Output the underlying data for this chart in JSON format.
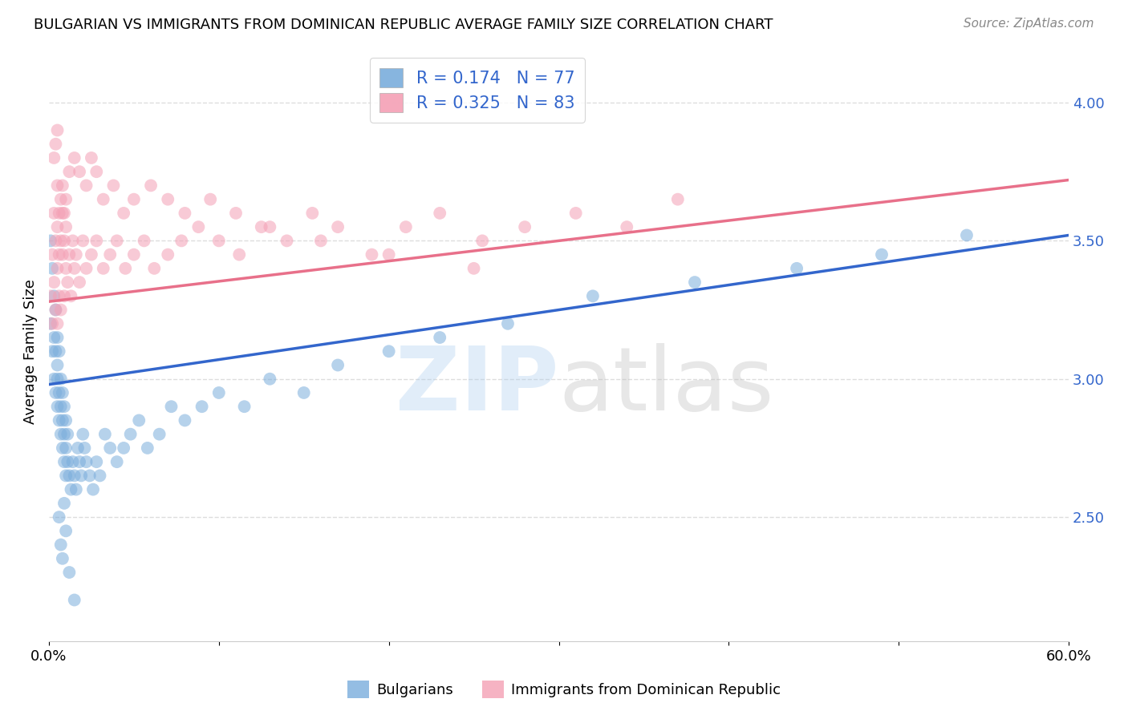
{
  "title": "BULGARIAN VS IMMIGRANTS FROM DOMINICAN REPUBLIC AVERAGE FAMILY SIZE CORRELATION CHART",
  "source": "Source: ZipAtlas.com",
  "ylabel": "Average Family Size",
  "xlim": [
    0.0,
    0.6
  ],
  "ylim": [
    2.05,
    4.15
  ],
  "yticks_right": [
    2.5,
    3.0,
    3.5,
    4.0
  ],
  "blue_R": 0.174,
  "blue_N": 77,
  "pink_R": 0.325,
  "pink_N": 83,
  "blue_label": "Bulgarians",
  "pink_label": "Immigrants from Dominican Republic",
  "blue_color": "#7AADDC",
  "pink_color": "#F4A0B5",
  "blue_line_color": "#3366CC",
  "pink_line_color": "#E8708A",
  "bg_color": "#FFFFFF",
  "grid_color": "#DDDDDD",
  "blue_line_y0": 2.98,
  "blue_line_y1": 3.52,
  "pink_line_y0": 3.28,
  "pink_line_y1": 3.72,
  "blue_x": [
    0.001,
    0.001,
    0.002,
    0.002,
    0.003,
    0.003,
    0.003,
    0.004,
    0.004,
    0.004,
    0.005,
    0.005,
    0.005,
    0.005,
    0.006,
    0.006,
    0.006,
    0.007,
    0.007,
    0.007,
    0.008,
    0.008,
    0.008,
    0.009,
    0.009,
    0.009,
    0.01,
    0.01,
    0.01,
    0.011,
    0.011,
    0.012,
    0.013,
    0.014,
    0.015,
    0.016,
    0.017,
    0.018,
    0.019,
    0.02,
    0.021,
    0.022,
    0.024,
    0.026,
    0.028,
    0.03,
    0.033,
    0.036,
    0.04,
    0.044,
    0.048,
    0.053,
    0.058,
    0.065,
    0.072,
    0.08,
    0.09,
    0.1,
    0.115,
    0.13,
    0.15,
    0.17,
    0.2,
    0.23,
    0.27,
    0.32,
    0.38,
    0.44,
    0.49,
    0.54,
    0.006,
    0.007,
    0.008,
    0.009,
    0.01,
    0.012,
    0.015
  ],
  "blue_y": [
    3.5,
    3.2,
    3.1,
    3.4,
    3.3,
    3.15,
    3.0,
    2.95,
    3.1,
    3.25,
    3.05,
    3.15,
    2.9,
    3.0,
    2.95,
    3.1,
    2.85,
    2.9,
    3.0,
    2.8,
    2.85,
    2.95,
    2.75,
    2.8,
    2.9,
    2.7,
    2.75,
    2.85,
    2.65,
    2.8,
    2.7,
    2.65,
    2.6,
    2.7,
    2.65,
    2.6,
    2.75,
    2.7,
    2.65,
    2.8,
    2.75,
    2.7,
    2.65,
    2.6,
    2.7,
    2.65,
    2.8,
    2.75,
    2.7,
    2.75,
    2.8,
    2.85,
    2.75,
    2.8,
    2.9,
    2.85,
    2.9,
    2.95,
    2.9,
    3.0,
    2.95,
    3.05,
    3.1,
    3.15,
    3.2,
    3.3,
    3.35,
    3.4,
    3.45,
    3.52,
    2.5,
    2.4,
    2.35,
    2.55,
    2.45,
    2.3,
    2.2
  ],
  "pink_x": [
    0.001,
    0.002,
    0.002,
    0.003,
    0.003,
    0.004,
    0.004,
    0.005,
    0.005,
    0.005,
    0.006,
    0.006,
    0.007,
    0.007,
    0.008,
    0.008,
    0.009,
    0.009,
    0.01,
    0.01,
    0.011,
    0.012,
    0.013,
    0.014,
    0.015,
    0.016,
    0.018,
    0.02,
    0.022,
    0.025,
    0.028,
    0.032,
    0.036,
    0.04,
    0.045,
    0.05,
    0.056,
    0.062,
    0.07,
    0.078,
    0.088,
    0.1,
    0.112,
    0.125,
    0.14,
    0.155,
    0.17,
    0.19,
    0.21,
    0.23,
    0.255,
    0.28,
    0.31,
    0.34,
    0.37,
    0.005,
    0.006,
    0.007,
    0.008,
    0.009,
    0.01,
    0.003,
    0.004,
    0.005,
    0.012,
    0.015,
    0.018,
    0.022,
    0.025,
    0.028,
    0.032,
    0.038,
    0.044,
    0.05,
    0.06,
    0.07,
    0.08,
    0.095,
    0.11,
    0.13,
    0.16,
    0.2,
    0.25
  ],
  "pink_y": [
    3.3,
    3.45,
    3.2,
    3.6,
    3.35,
    3.5,
    3.25,
    3.4,
    3.55,
    3.2,
    3.45,
    3.3,
    3.5,
    3.25,
    3.45,
    3.6,
    3.3,
    3.5,
    3.4,
    3.55,
    3.35,
    3.45,
    3.3,
    3.5,
    3.4,
    3.45,
    3.35,
    3.5,
    3.4,
    3.45,
    3.5,
    3.4,
    3.45,
    3.5,
    3.4,
    3.45,
    3.5,
    3.4,
    3.45,
    3.5,
    3.55,
    3.5,
    3.45,
    3.55,
    3.5,
    3.6,
    3.55,
    3.45,
    3.55,
    3.6,
    3.5,
    3.55,
    3.6,
    3.55,
    3.65,
    3.7,
    3.6,
    3.65,
    3.7,
    3.6,
    3.65,
    3.8,
    3.85,
    3.9,
    3.75,
    3.8,
    3.75,
    3.7,
    3.8,
    3.75,
    3.65,
    3.7,
    3.6,
    3.65,
    3.7,
    3.65,
    3.6,
    3.65,
    3.6,
    3.55,
    3.5,
    3.45,
    3.4
  ]
}
